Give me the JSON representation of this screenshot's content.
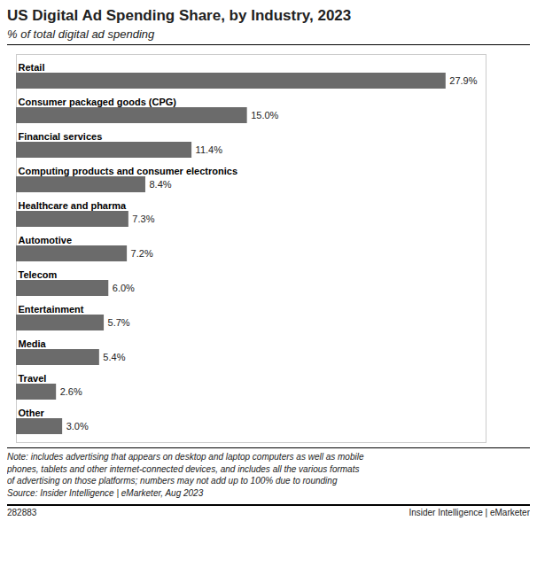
{
  "chart_data": {
    "type": "bar",
    "orientation": "horizontal",
    "title": "US Digital Ad Spending Share, by Industry, 2023",
    "subtitle": "% of total digital ad spending",
    "categories": [
      "Retail",
      "Consumer packaged goods (CPG)",
      "Financial services",
      "Computing products and consumer electronics",
      "Healthcare and pharma",
      "Automotive",
      "Telecom",
      "Entertainment",
      "Media",
      "Travel",
      "Other"
    ],
    "values": [
      27.9,
      15.0,
      11.4,
      8.4,
      7.3,
      7.2,
      6.0,
      5.7,
      5.4,
      2.6,
      3.0
    ],
    "value_labels": [
      "27.9%",
      "15.0%",
      "11.4%",
      "8.4%",
      "7.3%",
      "7.2%",
      "6.0%",
      "5.7%",
      "5.4%",
      "2.6%",
      "3.0%"
    ],
    "color": "#6b6b6b",
    "xlim": [
      0,
      30.5
    ],
    "data_labels": true,
    "tick_labels": false,
    "grid": false,
    "notes": [
      "Note: includes advertising that appears on desktop and laptop computers as well as mobile",
      "phones, tablets and other internet-connected devices, and includes all the various formats",
      "of advertising on those platforms; numbers may not add up to 100% due to rounding",
      "Source: Insider Intelligence | eMarketer, Aug 2023"
    ],
    "footer": [
      "282883",
      "Insider Intelligence | eMarketer"
    ]
  }
}
